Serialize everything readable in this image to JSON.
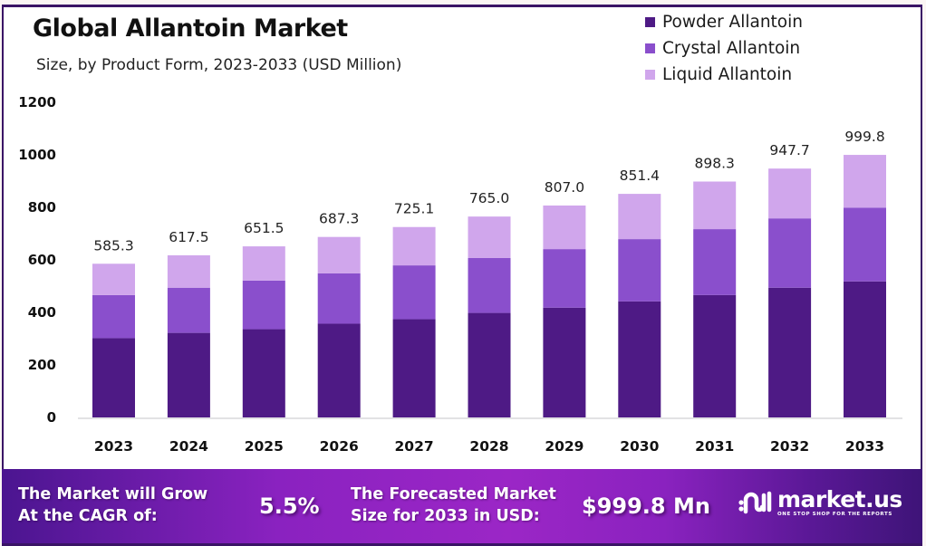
{
  "header": {
    "title": "Global Allantoin Market",
    "subtitle": "Size, by Product Form, 2023-2033 (USD Million)"
  },
  "legend": [
    {
      "label": "Powder Allantoin",
      "color": "#4e1a85"
    },
    {
      "label": "Crystal Allantoin",
      "color": "#8a4fcc"
    },
    {
      "label": "Liquid Allantoin",
      "color": "#d0a6ec"
    }
  ],
  "chart_data": {
    "type": "bar",
    "stacked": true,
    "title": "Global Allantoin Market",
    "subtitle": "Size, by Product Form, 2023-2033 (USD Million)",
    "xlabel": "",
    "ylabel": "",
    "ylim": [
      0,
      1200
    ],
    "yticks": [
      0,
      200,
      400,
      600,
      800,
      1000,
      1200
    ],
    "grid": false,
    "legend_position": "top-right",
    "categories": [
      "2023",
      "2024",
      "2025",
      "2026",
      "2027",
      "2028",
      "2029",
      "2030",
      "2031",
      "2032",
      "2033"
    ],
    "series": [
      {
        "name": "Powder Allantoin",
        "color": "#4e1a85",
        "values": [
          302,
          322,
          336,
          357,
          374,
          398,
          418,
          442,
          466,
          494,
          518
        ]
      },
      {
        "name": "Crystal Allantoin",
        "color": "#8a4fcc",
        "values": [
          164,
          172,
          185,
          192,
          205,
          209,
          223,
          237,
          251,
          264,
          281
        ]
      },
      {
        "name": "Liquid Allantoin",
        "color": "#d0a6ec",
        "values": [
          119.3,
          123.5,
          130.5,
          138.3,
          146.1,
          158.0,
          166.0,
          172.4,
          181.3,
          189.7,
          200.8
        ]
      }
    ],
    "totals": [
      585.3,
      617.5,
      651.5,
      687.3,
      725.1,
      765.0,
      807.0,
      851.4,
      898.3,
      947.7,
      999.8
    ],
    "total_labels": [
      "585.3",
      "617.5",
      "651.5",
      "687.3",
      "725.1",
      "765.0",
      "807.0",
      "851.4",
      "898.3",
      "947.7",
      "999.8"
    ]
  },
  "footer": {
    "cagr_label_line1": "The Market will Grow",
    "cagr_label_line2": "At the CAGR of:",
    "cagr_value": "5.5%",
    "forecast_label_line1": "The Forecasted Market",
    "forecast_label_line2": "Size for 2033 in USD:",
    "forecast_value": "$999.8 Mn",
    "brand_name": "market.us",
    "brand_tagline": "ONE STOP SHOP FOR THE REPORTS",
    "brand_icon": "market-us-logo-icon"
  }
}
